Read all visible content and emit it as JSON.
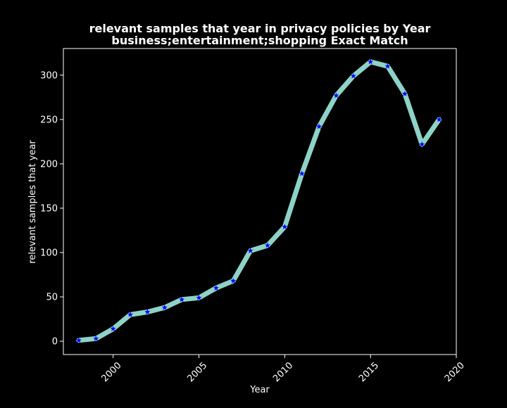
{
  "chart_data": {
    "type": "line",
    "title_line1": "relevant samples that year in privacy policies by Year",
    "title_line2": "business;entertainment;shopping Exact Match",
    "xlabel": "Year",
    "ylabel": "relevant samples that year",
    "xlim": [
      1997.1,
      2020.0
    ],
    "ylim": [
      -15,
      330
    ],
    "xticks": [
      2000,
      2005,
      2010,
      2015,
      2020
    ],
    "yticks": [
      0,
      50,
      100,
      150,
      200,
      250,
      300
    ],
    "grid": false,
    "line_color": "#8dd3c7",
    "marker_color": "#0000ff",
    "background": "#000000",
    "text_color": "#ffffff",
    "x": [
      1998,
      1999,
      2000,
      2001,
      2002,
      2003,
      2004,
      2005,
      2006,
      2007,
      2008,
      2009,
      2010,
      2011,
      2012,
      2013,
      2014,
      2015,
      2016,
      2017,
      2018,
      2019
    ],
    "y": [
      1,
      3,
      14,
      30,
      33,
      38,
      47,
      49,
      60,
      68,
      102,
      108,
      129,
      189,
      242,
      277,
      299,
      315,
      310,
      279,
      222,
      250
    ]
  }
}
